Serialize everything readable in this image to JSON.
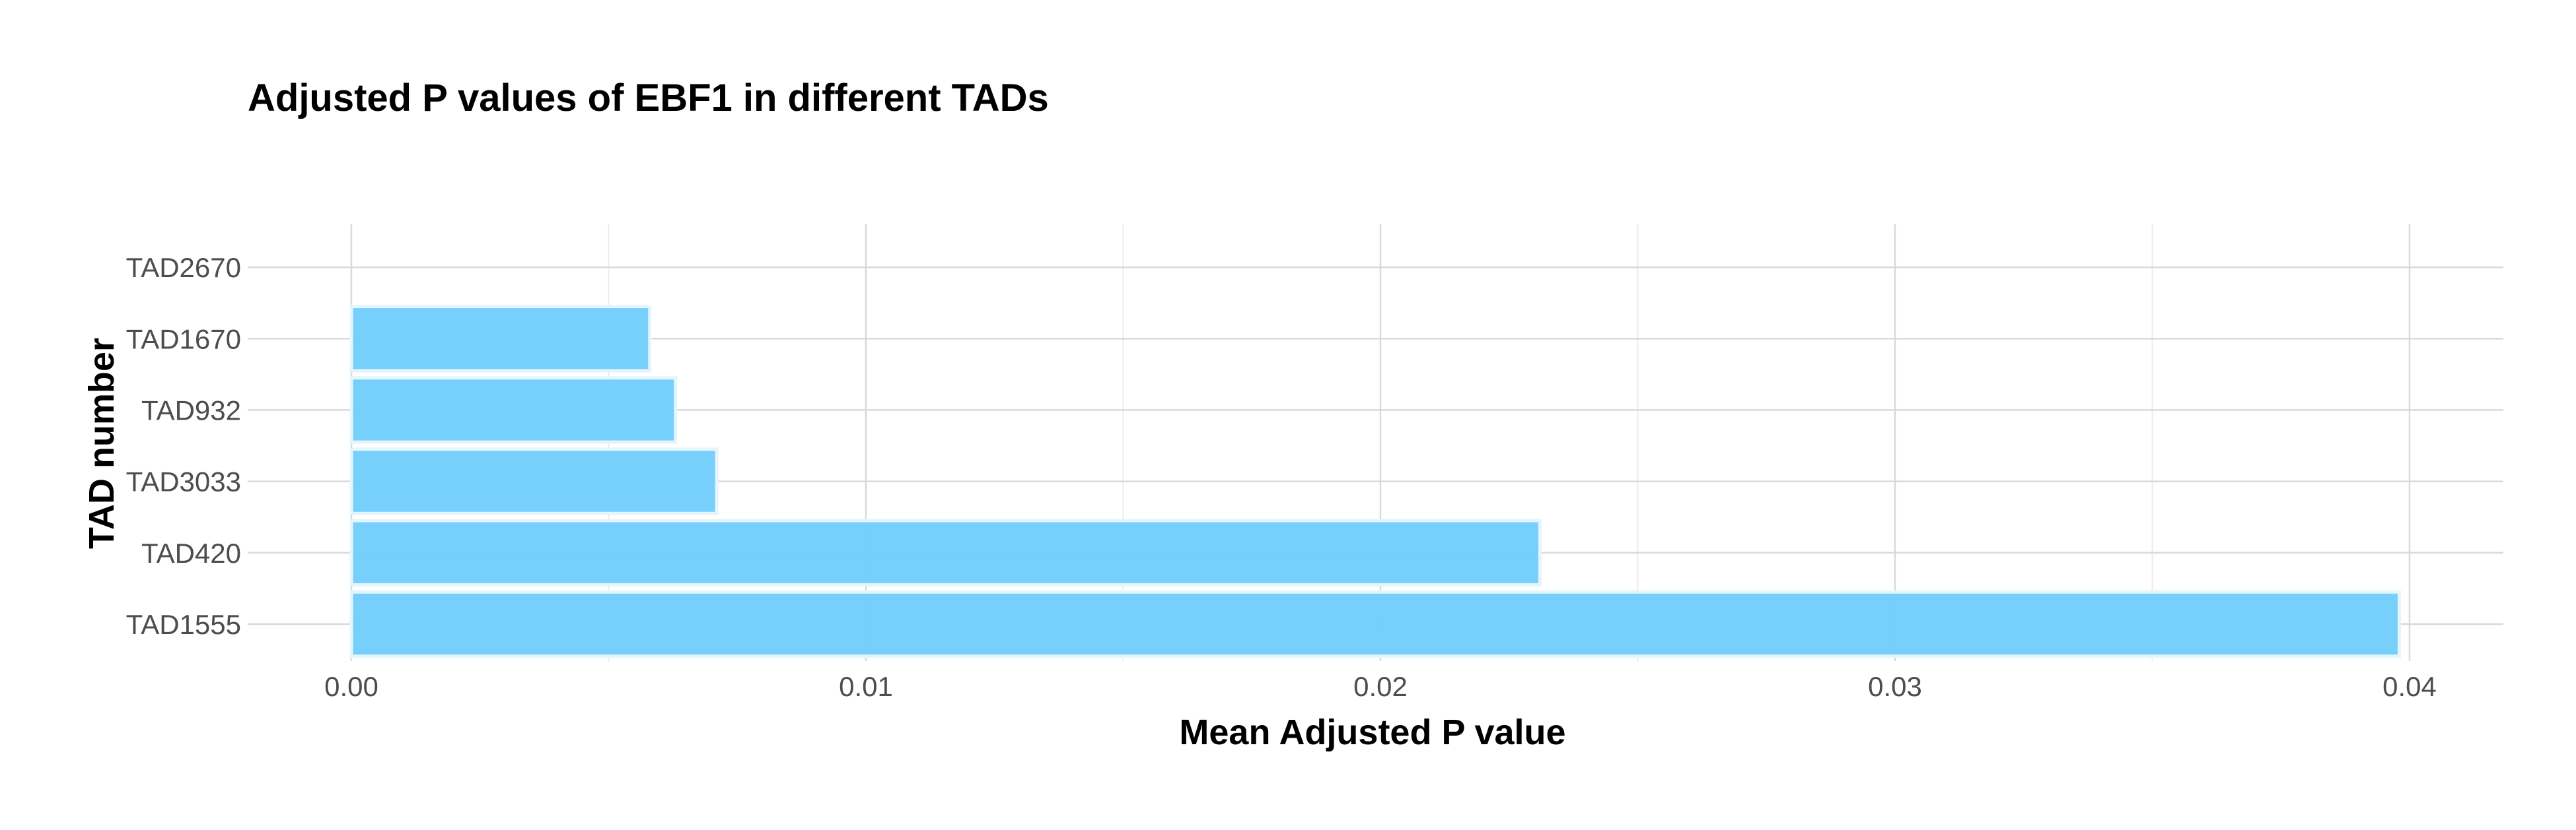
{
  "chart_data": {
    "type": "bar",
    "orientation": "horizontal",
    "title": "Adjusted P values of EBF1 in different TADs",
    "xlabel": "Mean Adjusted P value",
    "ylabel": "TAD number",
    "categories": [
      "TAD1555",
      "TAD420",
      "TAD3033",
      "TAD932",
      "TAD1670",
      "TAD2670"
    ],
    "values": [
      0.0398,
      0.0231,
      0.0071,
      0.0063,
      0.0058,
      0.0
    ],
    "x_ticks": [
      "0.00",
      "0.01",
      "0.02",
      "0.03",
      "0.04"
    ],
    "xlim": [
      0,
      0.042
    ],
    "grid": true,
    "bar_color": "#73CEFB"
  }
}
